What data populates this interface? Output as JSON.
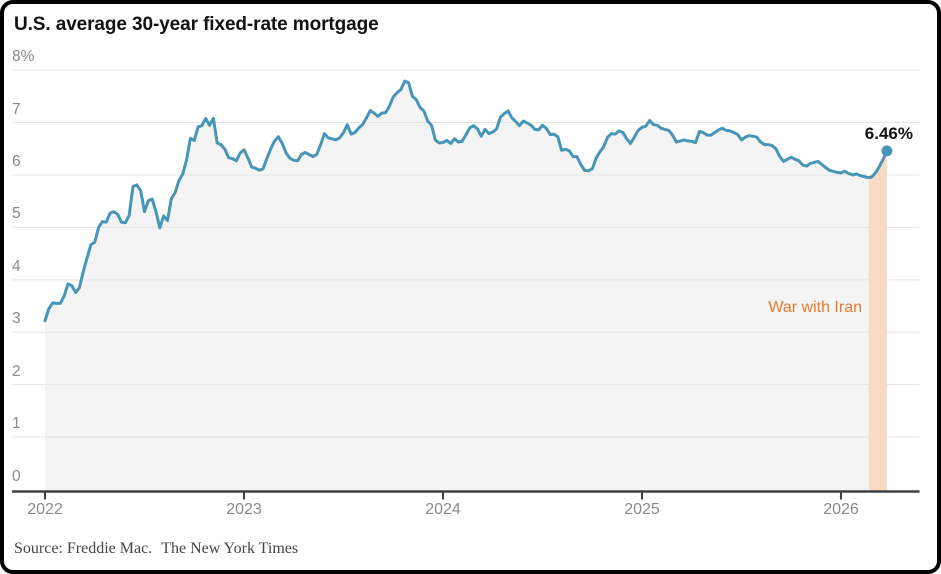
{
  "header": {
    "title": "U.S. average 30-year fixed-rate mortgage"
  },
  "footer": {
    "source": "Source: Freddie Mac.",
    "credit": "The New York Times"
  },
  "chart_data": {
    "type": "line",
    "title": "U.S. average 30-year fixed-rate mortgage",
    "unit": "percent",
    "legend": "none",
    "x_axis": {
      "tick_labels": [
        "2022",
        "2023",
        "2024",
        "2025",
        "2026"
      ],
      "start_year": 2022,
      "points_per_year": 52
    },
    "y_axis": {
      "tick_labels": [
        "8%",
        "7",
        "6",
        "5",
        "4",
        "3",
        "2",
        "1",
        "0"
      ],
      "tick_values": [
        8,
        7,
        6,
        5,
        4,
        3,
        2,
        1,
        0
      ],
      "min": 0,
      "max": 8,
      "grid": true
    },
    "series": [
      {
        "name": "30-year fixed-rate mortgage rate",
        "sampling": "weekly",
        "values": {
          "2022": [
            3.22,
            3.45,
            3.56,
            3.55,
            3.55,
            3.69,
            3.92,
            3.89,
            3.76,
            3.85,
            4.16,
            4.42,
            4.67,
            4.72,
            5.0,
            5.11,
            5.1,
            5.27,
            5.3,
            5.25,
            5.1,
            5.09,
            5.23,
            5.78,
            5.81,
            5.7,
            5.3,
            5.51,
            5.54,
            5.3,
            4.99,
            5.22,
            5.13,
            5.55,
            5.66,
            5.89,
            6.02,
            6.29,
            6.7,
            6.66,
            6.92,
            6.94,
            7.08,
            6.95,
            7.08,
            6.61,
            6.58,
            6.49,
            6.33,
            6.31,
            6.27,
            6.42
          ],
          "2023": [
            6.48,
            6.33,
            6.15,
            6.13,
            6.09,
            6.12,
            6.32,
            6.5,
            6.65,
            6.73,
            6.6,
            6.42,
            6.32,
            6.28,
            6.27,
            6.39,
            6.43,
            6.39,
            6.35,
            6.39,
            6.57,
            6.79,
            6.71,
            6.69,
            6.67,
            6.71,
            6.81,
            6.96,
            6.78,
            6.81,
            6.9,
            6.96,
            7.09,
            7.23,
            7.18,
            7.12,
            7.18,
            7.19,
            7.31,
            7.49,
            7.57,
            7.63,
            7.79,
            7.76,
            7.5,
            7.44,
            7.29,
            7.22,
            7.03,
            6.95,
            6.67,
            6.61
          ],
          "2024": [
            6.62,
            6.66,
            6.6,
            6.69,
            6.63,
            6.64,
            6.77,
            6.9,
            6.94,
            6.88,
            6.74,
            6.87,
            6.79,
            6.82,
            6.88,
            7.1,
            7.17,
            7.22,
            7.09,
            7.02,
            6.94,
            7.03,
            6.99,
            6.95,
            6.87,
            6.86,
            6.95,
            6.89,
            6.77,
            6.78,
            6.73,
            6.47,
            6.49,
            6.46,
            6.35,
            6.35,
            6.2,
            6.09,
            6.08,
            6.12,
            6.32,
            6.44,
            6.54,
            6.72,
            6.79,
            6.78,
            6.84,
            6.81,
            6.69,
            6.6,
            6.72,
            6.85
          ],
          "2025": [
            6.91,
            6.93,
            7.04,
            6.96,
            6.95,
            6.89,
            6.87,
            6.85,
            6.76,
            6.63,
            6.65,
            6.67,
            6.65,
            6.64,
            6.62,
            6.83,
            6.81,
            6.76,
            6.76,
            6.81,
            6.86,
            6.89,
            6.85,
            6.84,
            6.81,
            6.77,
            6.67,
            6.72,
            6.75,
            6.74,
            6.72,
            6.63,
            6.58,
            6.58,
            6.56,
            6.5,
            6.35,
            6.26,
            6.3,
            6.34,
            6.3,
            6.27,
            6.19,
            6.17,
            6.22,
            6.24,
            6.26,
            6.2,
            6.14,
            6.09,
            6.07,
            6.05
          ],
          "2026": [
            6.04,
            6.07,
            6.03,
            6.0,
            6.02,
            5.99,
            5.97,
            5.95,
            5.96,
            6.04,
            6.16,
            6.3,
            6.46
          ]
        }
      }
    ],
    "annotations": {
      "band": {
        "label": "War with Iran",
        "x_from_year": 2026.14,
        "x_to_year": 2026.24
      },
      "end_point": {
        "label": "6.46%",
        "value": 6.46
      }
    },
    "colors": {
      "line": "#4795b7",
      "area": "#f4f4f4",
      "band": "#f9dbc5",
      "grid": "#e5e5e5",
      "axis": "#404040",
      "tick_label": "#8a8a8a",
      "band_label": "#e8782f"
    }
  }
}
